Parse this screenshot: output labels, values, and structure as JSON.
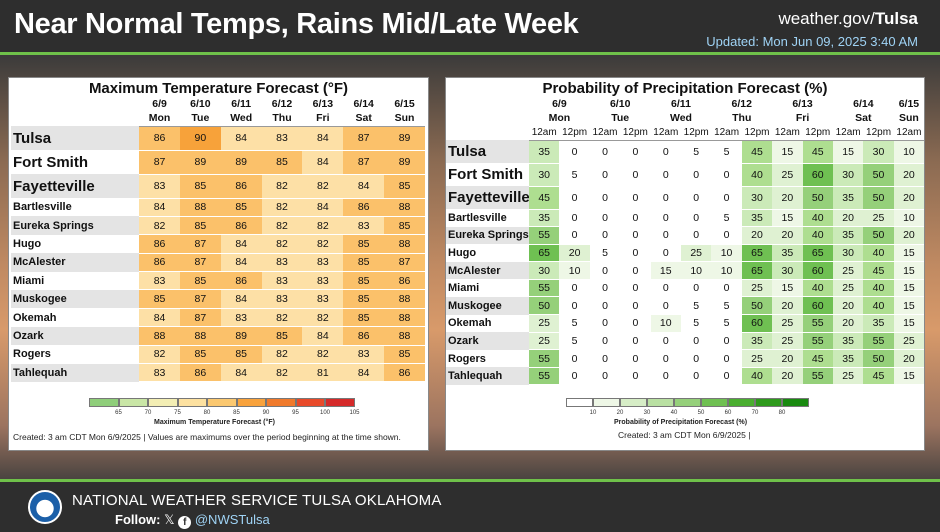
{
  "header": {
    "title": "Near Normal Temps, Rains Mid/Late Week",
    "site_prefix": "weather.gov/",
    "site_bold": "Tulsa",
    "updated": "Updated: Mon Jun 09, 2025 3:40 AM"
  },
  "temp": {
    "title": "Maximum Temperature Forecast (°F)",
    "dates": [
      "6/9",
      "6/10",
      "6/11",
      "6/12",
      "6/13",
      "6/14",
      "6/15"
    ],
    "days": [
      "Mon",
      "Tue",
      "Wed",
      "Thu",
      "Fri",
      "Sat",
      "Sun"
    ],
    "rows": [
      {
        "city": "Tulsa",
        "v": [
          86,
          90,
          84,
          83,
          84,
          87,
          89
        ]
      },
      {
        "city": "Fort Smith",
        "v": [
          87,
          89,
          89,
          85,
          84,
          87,
          89
        ]
      },
      {
        "city": "Fayetteville",
        "v": [
          83,
          85,
          86,
          82,
          82,
          84,
          85
        ]
      },
      {
        "city": "Bartlesville",
        "v": [
          84,
          88,
          85,
          82,
          84,
          86,
          88
        ]
      },
      {
        "city": "Eureka Springs",
        "v": [
          82,
          85,
          86,
          82,
          82,
          83,
          85
        ]
      },
      {
        "city": "Hugo",
        "v": [
          86,
          87,
          84,
          82,
          82,
          85,
          88
        ]
      },
      {
        "city": "McAlester",
        "v": [
          86,
          87,
          84,
          83,
          83,
          85,
          87
        ]
      },
      {
        "city": "Miami",
        "v": [
          83,
          85,
          86,
          83,
          83,
          85,
          86
        ]
      },
      {
        "city": "Muskogee",
        "v": [
          85,
          87,
          84,
          83,
          83,
          85,
          88
        ]
      },
      {
        "city": "Okemah",
        "v": [
          84,
          87,
          83,
          82,
          82,
          85,
          88
        ]
      },
      {
        "city": "Ozark",
        "v": [
          88,
          88,
          89,
          85,
          84,
          86,
          88
        ]
      },
      {
        "city": "Rogers",
        "v": [
          82,
          85,
          85,
          82,
          82,
          83,
          85
        ]
      },
      {
        "city": "Tahlequah",
        "v": [
          83,
          86,
          84,
          82,
          81,
          84,
          86
        ]
      }
    ],
    "legend_ticks": [
      "65",
      "70",
      "75",
      "80",
      "85",
      "90",
      "95",
      "100",
      "105"
    ],
    "legend_colors": [
      "#8fce7a",
      "#c9e6a6",
      "#f3eeb4",
      "#fde1a0",
      "#fbc870",
      "#f8a23c",
      "#f07a2c",
      "#e84a2a",
      "#d52a2a"
    ],
    "legend_title": "Maximum Temperature Forecast (°F)",
    "created": "Created: 3 am CDT Mon 6/9/2025  |  Values are maximums over the period beginning at the time shown."
  },
  "pop": {
    "title": "Probability of Precipitation Forecast (%)",
    "dates": [
      "6/9",
      "6/10",
      "6/11",
      "6/12",
      "6/13",
      "6/14",
      "6/15"
    ],
    "days": [
      "Mon",
      "Tue",
      "Wed",
      "Thu",
      "Fri",
      "Sat",
      "Sun"
    ],
    "periods": [
      "12am",
      "12pm",
      "12am",
      "12pm",
      "12am",
      "12pm",
      "12am",
      "12pm",
      "12am",
      "12pm",
      "12am",
      "12pm",
      "12am"
    ],
    "rows": [
      {
        "city": "Tulsa",
        "v": [
          35,
          0,
          0,
          0,
          0,
          5,
          5,
          45,
          15,
          45,
          15,
          30,
          10
        ]
      },
      {
        "city": "Fort Smith",
        "v": [
          30,
          5,
          0,
          0,
          0,
          0,
          0,
          40,
          25,
          60,
          30,
          50,
          20
        ]
      },
      {
        "city": "Fayetteville",
        "v": [
          45,
          0,
          0,
          0,
          0,
          0,
          0,
          30,
          20,
          50,
          35,
          50,
          20
        ]
      },
      {
        "city": "Bartlesville",
        "v": [
          35,
          0,
          0,
          0,
          0,
          0,
          5,
          35,
          15,
          40,
          20,
          25,
          10
        ]
      },
      {
        "city": "Eureka Springs",
        "v": [
          55,
          0,
          0,
          0,
          0,
          0,
          0,
          20,
          20,
          40,
          35,
          50,
          20
        ]
      },
      {
        "city": "Hugo",
        "v": [
          65,
          20,
          5,
          0,
          0,
          25,
          10,
          65,
          35,
          65,
          30,
          40,
          15
        ]
      },
      {
        "city": "McAlester",
        "v": [
          30,
          10,
          0,
          0,
          15,
          10,
          10,
          65,
          30,
          60,
          25,
          45,
          15
        ]
      },
      {
        "city": "Miami",
        "v": [
          55,
          0,
          0,
          0,
          0,
          0,
          0,
          25,
          15,
          40,
          25,
          40,
          15
        ]
      },
      {
        "city": "Muskogee",
        "v": [
          50,
          0,
          0,
          0,
          0,
          5,
          5,
          50,
          20,
          60,
          20,
          40,
          15
        ]
      },
      {
        "city": "Okemah",
        "v": [
          25,
          5,
          0,
          0,
          10,
          5,
          5,
          60,
          25,
          55,
          20,
          35,
          15
        ]
      },
      {
        "city": "Ozark",
        "v": [
          25,
          5,
          0,
          0,
          0,
          0,
          0,
          35,
          25,
          55,
          35,
          55,
          25
        ]
      },
      {
        "city": "Rogers",
        "v": [
          55,
          0,
          0,
          0,
          0,
          0,
          0,
          25,
          20,
          45,
          35,
          50,
          20
        ]
      },
      {
        "city": "Tahlequah",
        "v": [
          55,
          0,
          0,
          0,
          0,
          0,
          0,
          40,
          20,
          55,
          25,
          45,
          15
        ]
      }
    ],
    "legend_ticks": [
      "10",
      "20",
      "30",
      "40",
      "50",
      "60",
      "70",
      "80"
    ],
    "legend_colors": [
      "#ffffff",
      "#eef7e6",
      "#d6edc6",
      "#b9e0a2",
      "#95d07a",
      "#6fc052",
      "#4aae30",
      "#2e9a1c",
      "#198a10"
    ],
    "legend_title": "Probability of Precipitation Forecast (%)",
    "created": "Created: 3 am CDT Mon 6/9/2025  |"
  },
  "footer": {
    "org": "NATIONAL WEATHER SERVICE TULSA OKLAHOMA",
    "follow": "Follow:",
    "handle": "@NWSTulsa",
    "logo_icon": "nws-logo-icon",
    "x_icon": "x-icon",
    "facebook_icon": "facebook-icon"
  }
}
